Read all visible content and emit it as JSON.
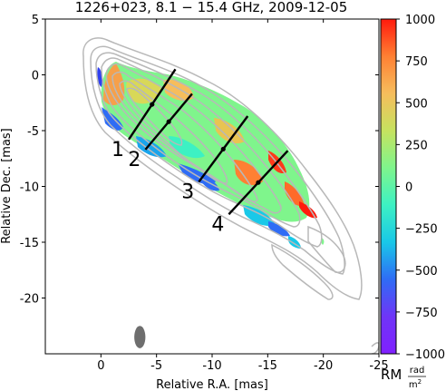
{
  "chart_data": {
    "type": "heatmap",
    "title": "1226+023, 8.1 − 15.4 GHz, 2009-12-05",
    "xlabel": "Relative R.A. [mas]",
    "ylabel": "Relative Dec. [mas]",
    "xlim": [
      5,
      -25
    ],
    "ylim": [
      -25,
      5
    ],
    "x_ticks": [
      0,
      -5,
      -10,
      -15,
      -20,
      -25
    ],
    "x_tick_labels": [
      "0",
      "-5",
      "-10",
      "-15",
      "-20",
      "-25"
    ],
    "y_ticks": [
      5,
      0,
      -5,
      -10,
      -15,
      -20
    ],
    "y_tick_labels": [
      "5",
      "0",
      "-5",
      "-10",
      "-15",
      "-20"
    ],
    "colorbar": {
      "label": "RM",
      "unit_num": "rad",
      "unit_den": "m2",
      "unit_den_base": "m",
      "unit_den_exp": "2",
      "min": -1000,
      "max": 1000,
      "ticks": [
        1000,
        750,
        500,
        250,
        0,
        -250,
        -500,
        -750,
        -1000
      ],
      "tick_labels": [
        "1000",
        "750",
        "500",
        "250",
        "0",
        "−250",
        "−500",
        "−750",
        "−1000"
      ],
      "colors": [
        "#ff1a0d",
        "#ff8033",
        "#f6bd5c",
        "#c6e25f",
        "#7ff58c",
        "#3df1c3",
        "#19c8e8",
        "#2f6cf5",
        "#6f35f7",
        "#8020ff"
      ]
    },
    "slices": [
      {
        "label": "1",
        "start": [
          -2.5,
          -5.8
        ],
        "end": [
          -6.7,
          0.5
        ]
      },
      {
        "label": "2",
        "start": [
          -4.0,
          -6.7
        ],
        "end": [
          -8.2,
          -1.7
        ]
      },
      {
        "label": "3",
        "start": [
          -8.8,
          -9.6
        ],
        "end": [
          -13.2,
          -3.7
        ]
      },
      {
        "label": "4",
        "start": [
          -11.5,
          -12.5
        ],
        "end": [
          -16.8,
          -6.8
        ]
      }
    ],
    "beam": {
      "x": -3.5,
      "y": -23.5,
      "major_mas": 2.0,
      "minor_mas": 1.0
    },
    "contour_color": "#b8b8b8",
    "slice_line_color": "#000000"
  }
}
